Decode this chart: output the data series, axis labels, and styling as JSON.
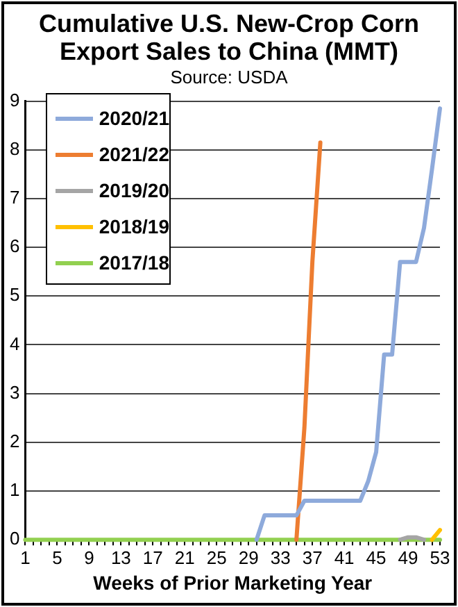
{
  "chart_data": {
    "type": "line",
    "title": "Cumulative U.S. New-Crop Corn Export Sales to China (MMT)",
    "subtitle": "Source: USDA",
    "xlabel": "Weeks of Prior Marketing Year",
    "x": [
      1,
      2,
      3,
      4,
      5,
      6,
      7,
      8,
      9,
      10,
      11,
      12,
      13,
      14,
      15,
      16,
      17,
      18,
      19,
      20,
      21,
      22,
      23,
      24,
      25,
      26,
      27,
      28,
      29,
      30,
      31,
      32,
      33,
      34,
      35,
      36,
      37,
      38,
      39,
      40,
      41,
      42,
      43,
      44,
      45,
      46,
      47,
      48,
      49,
      50,
      51,
      52,
      53
    ],
    "series": [
      {
        "name": "2020/21",
        "color": "#8eaadb",
        "values": [
          null,
          null,
          null,
          null,
          null,
          null,
          null,
          null,
          null,
          null,
          null,
          null,
          null,
          null,
          null,
          null,
          null,
          null,
          null,
          null,
          null,
          null,
          null,
          null,
          null,
          null,
          null,
          null,
          null,
          0,
          0.5,
          0.5,
          0.5,
          0.5,
          0.5,
          0.8,
          0.8,
          0.8,
          0.8,
          0.8,
          0.8,
          0.8,
          0.8,
          1.2,
          1.8,
          3.8,
          3.8,
          5.7,
          5.7,
          5.7,
          6.4,
          7.6,
          8.85
        ]
      },
      {
        "name": "2021/22",
        "color": "#ed7d31",
        "values": [
          null,
          null,
          null,
          null,
          null,
          null,
          null,
          null,
          null,
          null,
          null,
          null,
          null,
          null,
          null,
          null,
          null,
          null,
          null,
          null,
          null,
          null,
          null,
          null,
          null,
          null,
          null,
          null,
          null,
          null,
          null,
          null,
          null,
          null,
          0,
          2.3,
          5.7,
          8.15,
          null,
          null,
          null,
          null,
          null,
          null,
          null,
          null,
          null,
          null,
          null,
          null,
          null,
          null,
          null
        ]
      },
      {
        "name": "2019/20",
        "color": "#a5a5a5",
        "values": [
          null,
          null,
          null,
          null,
          null,
          null,
          null,
          null,
          null,
          null,
          null,
          null,
          null,
          null,
          null,
          null,
          null,
          null,
          null,
          null,
          null,
          null,
          null,
          null,
          null,
          null,
          null,
          null,
          null,
          null,
          null,
          null,
          null,
          null,
          null,
          null,
          null,
          null,
          null,
          null,
          null,
          null,
          null,
          null,
          null,
          null,
          null,
          0,
          0.05,
          0.05,
          0,
          null,
          null
        ]
      },
      {
        "name": "2018/19",
        "color": "#ffc000",
        "values": [
          null,
          null,
          null,
          null,
          null,
          null,
          null,
          null,
          null,
          null,
          null,
          null,
          null,
          null,
          null,
          null,
          null,
          null,
          null,
          null,
          null,
          null,
          null,
          null,
          null,
          null,
          null,
          null,
          null,
          null,
          null,
          null,
          null,
          null,
          null,
          null,
          null,
          null,
          null,
          null,
          null,
          null,
          null,
          null,
          null,
          null,
          null,
          null,
          null,
          null,
          null,
          0,
          0.2
        ]
      },
      {
        "name": "2017/18",
        "color": "#92d050",
        "values": [
          0,
          0,
          0,
          0,
          0,
          0,
          0,
          0,
          0,
          0,
          0,
          0,
          0,
          0,
          0,
          0,
          0,
          0,
          0,
          0,
          0,
          0,
          0,
          0,
          0,
          0,
          0,
          0,
          0,
          0,
          0,
          0,
          0,
          0,
          0,
          0,
          0,
          0,
          0,
          0,
          0,
          0,
          0,
          0,
          0,
          0,
          0,
          0,
          0,
          0,
          0,
          0,
          0
        ]
      }
    ],
    "xlim": [
      1,
      53
    ],
    "xticks": [
      1,
      {
        "value": 2,
        "label": null
      },
      {
        "value": 3,
        "label": null
      },
      {
        "value": 4,
        "label": null
      },
      5,
      {
        "value": 6,
        "label": null
      },
      {
        "value": 7,
        "label": null
      },
      {
        "value": 8,
        "label": null
      },
      9,
      {
        "value": 10,
        "label": null
      },
      {
        "value": 11,
        "label": null
      },
      {
        "value": 12,
        "label": null
      },
      13,
      {
        "value": 14,
        "label": null
      },
      {
        "value": 15,
        "label": null
      },
      {
        "value": 16,
        "label": null
      },
      17,
      {
        "value": 18,
        "label": null
      },
      {
        "value": 19,
        "label": null
      },
      {
        "value": 20,
        "label": null
      },
      21,
      {
        "value": 22,
        "label": null
      },
      {
        "value": 23,
        "label": null
      },
      {
        "value": 24,
        "label": null
      },
      25,
      {
        "value": 26,
        "label": null
      },
      {
        "value": 27,
        "label": null
      },
      {
        "value": 28,
        "label": null
      },
      29,
      {
        "value": 30,
        "label": null
      },
      {
        "value": 31,
        "label": null
      },
      {
        "value": 32,
        "label": null
      },
      33,
      {
        "value": 34,
        "label": null
      },
      {
        "value": 35,
        "label": null
      },
      {
        "value": 36,
        "label": null
      },
      37,
      {
        "value": 38,
        "label": null
      },
      {
        "value": 39,
        "label": null
      },
      {
        "value": 40,
        "label": null
      },
      41,
      {
        "value": 42,
        "label": null
      },
      {
        "value": 43,
        "label": null
      },
      {
        "value": 44,
        "label": null
      },
      45,
      {
        "value": 46,
        "label": null
      },
      {
        "value": 47,
        "label": null
      },
      {
        "value": 48,
        "label": null
      },
      49,
      {
        "value": 50,
        "label": null
      },
      {
        "value": 51,
        "label": null
      },
      {
        "value": 52,
        "label": null
      },
      53
    ],
    "ylim": [
      0,
      9
    ],
    "yticks": [
      0,
      1,
      2,
      3,
      4,
      5,
      6,
      7,
      8,
      9
    ],
    "grid": "y",
    "legend": "top left",
    "marker": "none",
    "line_style": "solid"
  }
}
